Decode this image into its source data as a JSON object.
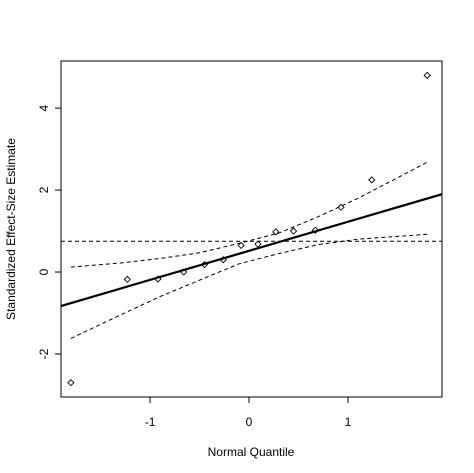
{
  "chart_data": {
    "type": "scatter",
    "title": "",
    "xlabel": "Normal Quantile",
    "ylabel": "Standardized Effect-Size Estimate",
    "xlim": [
      -1.9,
      1.95
    ],
    "ylim": [
      -3.05,
      5.15
    ],
    "xticks": [
      -1,
      0,
      1
    ],
    "yticks": [
      -2,
      0,
      2,
      4
    ],
    "grid": false,
    "legend": "none",
    "points": [
      {
        "x": -1.8,
        "y": -2.7
      },
      {
        "x": -1.23,
        "y": -0.18
      },
      {
        "x": -0.92,
        "y": -0.17
      },
      {
        "x": -0.66,
        "y": 0.0
      },
      {
        "x": -0.45,
        "y": 0.18
      },
      {
        "x": -0.26,
        "y": 0.3
      },
      {
        "x": -0.08,
        "y": 0.65
      },
      {
        "x": 0.09,
        "y": 0.68
      },
      {
        "x": 0.27,
        "y": 0.98
      },
      {
        "x": 0.45,
        "y": 1.0
      },
      {
        "x": 0.67,
        "y": 1.02
      },
      {
        "x": 0.93,
        "y": 1.58
      },
      {
        "x": 1.24,
        "y": 2.25
      },
      {
        "x": 1.8,
        "y": 4.8
      }
    ],
    "fit_line": {
      "x": [
        -1.9,
        1.95
      ],
      "y": [
        -0.83,
        1.9
      ]
    },
    "upper_band": {
      "x": [
        -1.8,
        -1.3,
        -0.9,
        -0.5,
        -0.1,
        0.3,
        0.7,
        1.1,
        1.5,
        1.8
      ],
      "y": [
        0.12,
        0.22,
        0.33,
        0.47,
        0.7,
        0.95,
        1.35,
        1.8,
        2.3,
        2.68
      ]
    },
    "lower_band": {
      "x": [
        -1.8,
        -1.3,
        -0.9,
        -0.5,
        -0.1,
        0.3,
        0.7,
        1.1,
        1.5,
        1.8
      ],
      "y": [
        -1.62,
        -1.05,
        -0.6,
        -0.2,
        0.2,
        0.45,
        0.67,
        0.8,
        0.87,
        0.92
      ]
    },
    "reference_hline": 0.75,
    "colors": {
      "line": "#000000",
      "points": "#000000",
      "background": "#ffffff"
    }
  }
}
